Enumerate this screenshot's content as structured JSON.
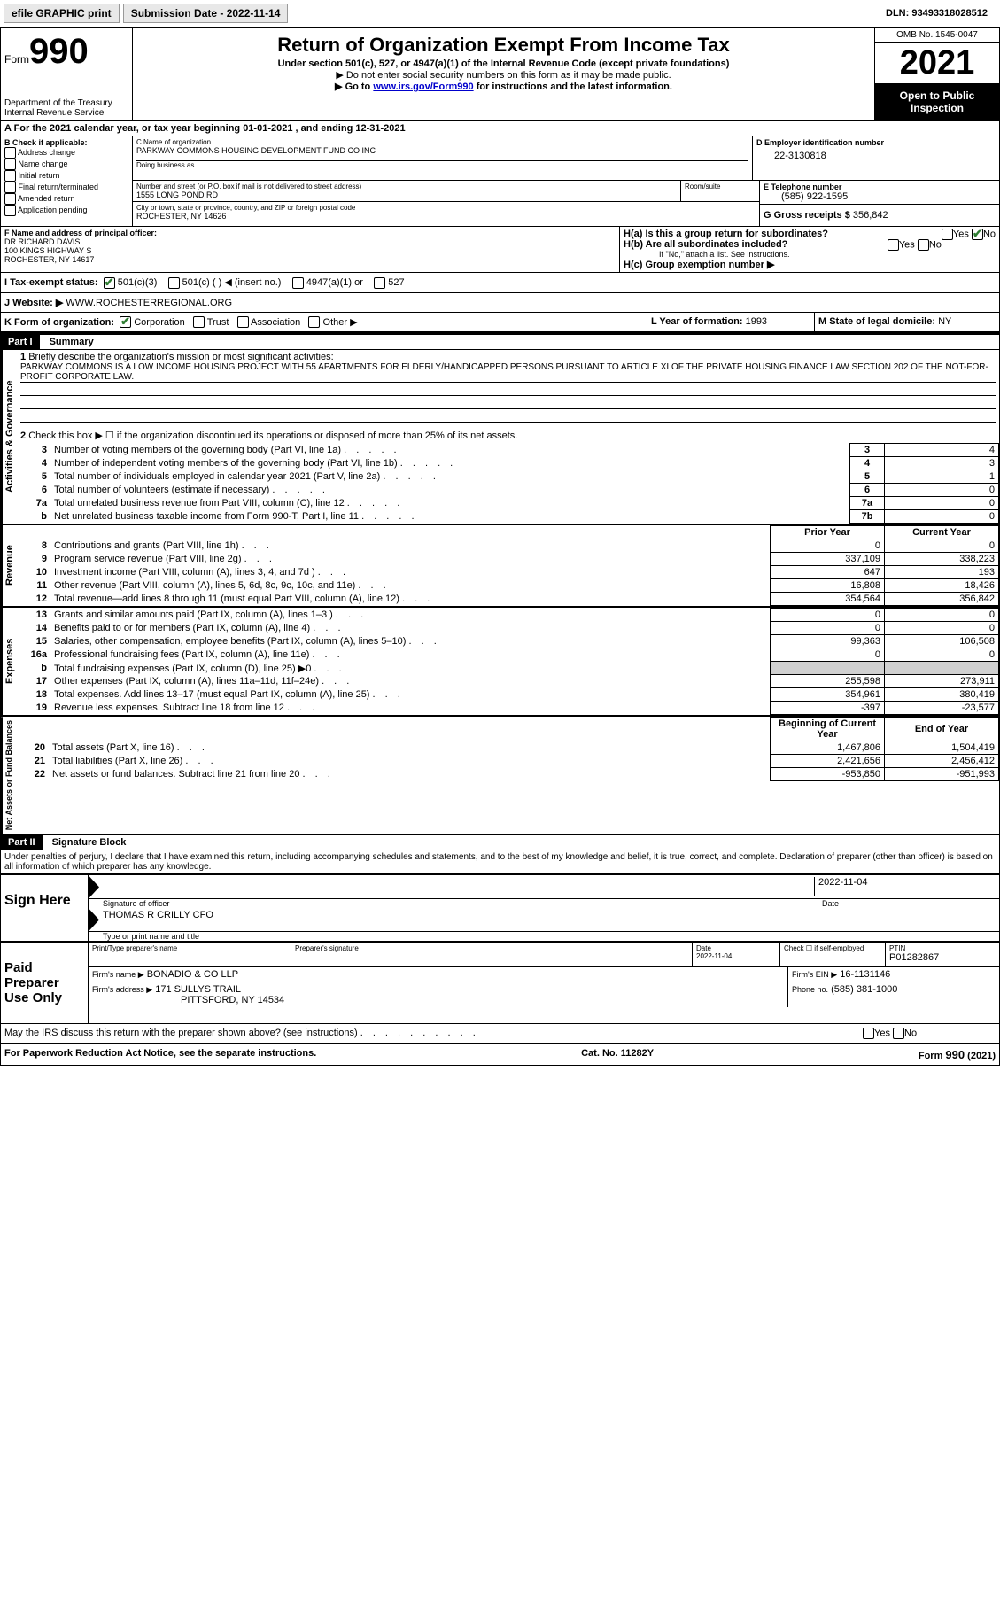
{
  "toolbar": {
    "efile": "efile GRAPHIC print",
    "submission_label": "Submission Date - 2022-11-14",
    "dln": "DLN: 93493318028512"
  },
  "header": {
    "form_label": "Form",
    "form_number": "990",
    "dept": "Department of the Treasury",
    "irs": "Internal Revenue Service",
    "title": "Return of Organization Exempt From Income Tax",
    "subtitle": "Under section 501(c), 527, or 4947(a)(1) of the Internal Revenue Code (except private foundations)",
    "note1": "▶ Do not enter social security numbers on this form as it may be made public.",
    "note2_pre": "▶ Go to ",
    "note2_link": "www.irs.gov/Form990",
    "note2_post": " for instructions and the latest information.",
    "omb": "OMB No. 1545-0047",
    "year": "2021",
    "open": "Open to Public Inspection"
  },
  "period": {
    "line": "A For the 2021 calendar year, or tax year beginning 01-01-2021   , and ending 12-31-2021"
  },
  "boxB": {
    "label": "B Check if applicable:",
    "items": [
      "Address change",
      "Name change",
      "Initial return",
      "Final return/terminated",
      "Amended return",
      "Application pending"
    ]
  },
  "boxC": {
    "name_label": "C Name of organization",
    "name": "PARKWAY COMMONS HOUSING DEVELOPMENT FUND CO INC",
    "dba_label": "Doing business as",
    "addr_label": "Number and street (or P.O. box if mail is not delivered to street address)",
    "room_label": "Room/suite",
    "address": "1555 LONG POND RD",
    "city_label": "City or town, state or province, country, and ZIP or foreign postal code",
    "city": "ROCHESTER, NY  14626"
  },
  "boxD": {
    "label": "D Employer identification number",
    "value": "22-3130818"
  },
  "boxE": {
    "label": "E Telephone number",
    "value": "(585) 922-1595"
  },
  "boxG": {
    "label": "G Gross receipts $",
    "value": "356,842"
  },
  "boxF": {
    "label": "F Name and address of principal officer:",
    "name": "DR RICHARD DAVIS",
    "addr1": "100 KINGS HIGHWAY S",
    "addr2": "ROCHESTER, NY  14617"
  },
  "boxH": {
    "a": "H(a)  Is this a group return for subordinates?",
    "b": "H(b)  Are all subordinates included?",
    "note": "If \"No,\" attach a list. See instructions.",
    "c": "H(c)  Group exemption number ▶",
    "yes": "Yes",
    "no": "No"
  },
  "boxI": {
    "label": "I   Tax-exempt status:",
    "opts": [
      "501(c)(3)",
      "501(c) (  ) ◀ (insert no.)",
      "4947(a)(1) or",
      "527"
    ]
  },
  "boxJ": {
    "label": "J   Website: ▶",
    "value": "WWW.ROCHESTERREGIONAL.ORG"
  },
  "boxK": {
    "label": "K Form of organization:",
    "opts": [
      "Corporation",
      "Trust",
      "Association",
      "Other ▶"
    ]
  },
  "boxL": {
    "label": "L Year of formation:",
    "value": "1993"
  },
  "boxM": {
    "label": "M State of legal domicile:",
    "value": "NY"
  },
  "part1": {
    "header": "Part I",
    "title": "Summary",
    "label_ag": "Activities & Governance",
    "label_rev": "Revenue",
    "label_exp": "Expenses",
    "label_na": "Net Assets or Fund Balances",
    "line1_label": "Briefly describe the organization's mission or most significant activities:",
    "mission": "PARKWAY COMMONS IS A LOW INCOME HOUSING PROJECT WITH 55 APARTMENTS FOR ELDERLY/HANDICAPPED PERSONS PURSUANT TO ARTICLE XI OF THE PRIVATE HOUSING FINANCE LAW SECTION 202 OF THE NOT-FOR-PROFIT CORPORATE LAW.",
    "line2": "Check this box ▶ ☐ if the organization discontinued its operations or disposed of more than 25% of its net assets.",
    "rows_ag": [
      {
        "n": "3",
        "t": "Number of voting members of the governing body (Part VI, line 1a)",
        "box": "3",
        "v": "4"
      },
      {
        "n": "4",
        "t": "Number of independent voting members of the governing body (Part VI, line 1b)",
        "box": "4",
        "v": "3"
      },
      {
        "n": "5",
        "t": "Total number of individuals employed in calendar year 2021 (Part V, line 2a)",
        "box": "5",
        "v": "1"
      },
      {
        "n": "6",
        "t": "Total number of volunteers (estimate if necessary)",
        "box": "6",
        "v": "0"
      },
      {
        "n": "7a",
        "t": "Total unrelated business revenue from Part VIII, column (C), line 12",
        "box": "7a",
        "v": "0"
      },
      {
        "n": "b",
        "t": "Net unrelated business taxable income from Form 990-T, Part I, line 11",
        "box": "7b",
        "v": "0"
      }
    ],
    "col_prior": "Prior Year",
    "col_current": "Current Year",
    "rows_rev": [
      {
        "n": "8",
        "t": "Contributions and grants (Part VIII, line 1h)",
        "p": "0",
        "c": "0"
      },
      {
        "n": "9",
        "t": "Program service revenue (Part VIII, line 2g)",
        "p": "337,109",
        "c": "338,223"
      },
      {
        "n": "10",
        "t": "Investment income (Part VIII, column (A), lines 3, 4, and 7d )",
        "p": "647",
        "c": "193"
      },
      {
        "n": "11",
        "t": "Other revenue (Part VIII, column (A), lines 5, 6d, 8c, 9c, 10c, and 11e)",
        "p": "16,808",
        "c": "18,426"
      },
      {
        "n": "12",
        "t": "Total revenue—add lines 8 through 11 (must equal Part VIII, column (A), line 12)",
        "p": "354,564",
        "c": "356,842"
      }
    ],
    "rows_exp": [
      {
        "n": "13",
        "t": "Grants and similar amounts paid (Part IX, column (A), lines 1–3 )",
        "p": "0",
        "c": "0"
      },
      {
        "n": "14",
        "t": "Benefits paid to or for members (Part IX, column (A), line 4)",
        "p": "0",
        "c": "0"
      },
      {
        "n": "15",
        "t": "Salaries, other compensation, employee benefits (Part IX, column (A), lines 5–10)",
        "p": "99,363",
        "c": "106,508"
      },
      {
        "n": "16a",
        "t": "Professional fundraising fees (Part IX, column (A), line 11e)",
        "p": "0",
        "c": "0"
      },
      {
        "n": "b",
        "t": "Total fundraising expenses (Part IX, column (D), line 25) ▶0",
        "p": "grey",
        "c": "grey"
      },
      {
        "n": "17",
        "t": "Other expenses (Part IX, column (A), lines 11a–11d, 11f–24e)",
        "p": "255,598",
        "c": "273,911"
      },
      {
        "n": "18",
        "t": "Total expenses. Add lines 13–17 (must equal Part IX, column (A), line 25)",
        "p": "354,961",
        "c": "380,419"
      },
      {
        "n": "19",
        "t": "Revenue less expenses. Subtract line 18 from line 12",
        "p": "-397",
        "c": "-23,577"
      }
    ],
    "col_begin": "Beginning of Current Year",
    "col_end": "End of Year",
    "rows_na": [
      {
        "n": "20",
        "t": "Total assets (Part X, line 16)",
        "p": "1,467,806",
        "c": "1,504,419"
      },
      {
        "n": "21",
        "t": "Total liabilities (Part X, line 26)",
        "p": "2,421,656",
        "c": "2,456,412"
      },
      {
        "n": "22",
        "t": "Net assets or fund balances. Subtract line 21 from line 20",
        "p": "-953,850",
        "c": "-951,993"
      }
    ]
  },
  "part2": {
    "header": "Part II",
    "title": "Signature Block",
    "penalty": "Under penalties of perjury, I declare that I have examined this return, including accompanying schedules and statements, and to the best of my knowledge and belief, it is true, correct, and complete. Declaration of preparer (other than officer) is based on all information of which preparer has any knowledge.",
    "sign_here": "Sign Here",
    "sig_officer": "Signature of officer",
    "sig_date": "2022-11-04",
    "date_label": "Date",
    "officer_name": "THOMAS R CRILLY CFO",
    "type_label": "Type or print name and title",
    "paid_prep": "Paid Preparer Use Only",
    "prep_name_label": "Print/Type preparer's name",
    "prep_sig_label": "Preparer's signature",
    "prep_date": "2022-11-04",
    "check_self": "Check ☐ if self-employed",
    "ptin_label": "PTIN",
    "ptin": "P01282867",
    "firm_name_label": "Firm's name    ▶",
    "firm_name": "BONADIO & CO LLP",
    "firm_ein_label": "Firm's EIN ▶",
    "firm_ein": "16-1131146",
    "firm_addr_label": "Firm's address ▶",
    "firm_addr": "171 SULLYS TRAIL",
    "firm_city": "PITTSFORD, NY  14534",
    "phone_label": "Phone no.",
    "phone": "(585) 381-1000",
    "discuss": "May the IRS discuss this return with the preparer shown above? (see instructions)"
  },
  "footer": {
    "pra": "For Paperwork Reduction Act Notice, see the separate instructions.",
    "cat": "Cat. No. 11282Y",
    "form": "Form 990 (2021)"
  }
}
